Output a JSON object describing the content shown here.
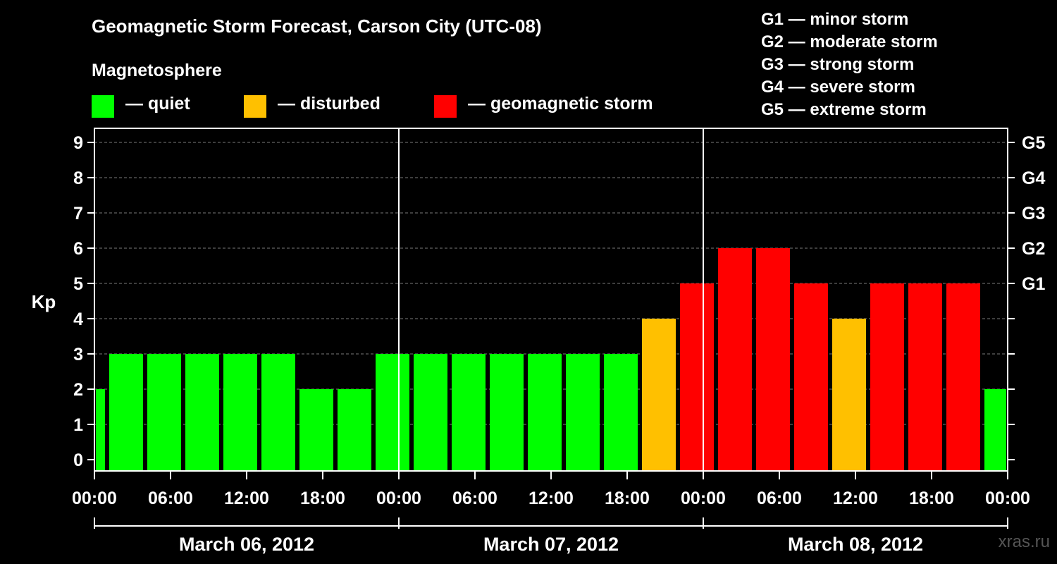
{
  "header": {
    "title": "Geomagnetic Storm Forecast, Carson City (UTC-08)",
    "magnetosphere_label": "Magnetosphere"
  },
  "legend": [
    {
      "label": "— quiet",
      "color": "#00ff00"
    },
    {
      "label": "— disturbed",
      "color": "#ffc000"
    },
    {
      "label": "— geomagnetic storm",
      "color": "#ff0000"
    }
  ],
  "storm_levels": [
    "G1 — minor storm",
    "G2 — moderate storm",
    "G3 — strong storm",
    "G4 — severe storm",
    "G5 — extreme storm"
  ],
  "watermark": "xras.ru",
  "chart_data": {
    "type": "bar",
    "title": "Geomagnetic Storm Forecast, Carson City (UTC-08)",
    "ylabel": "Kp",
    "ylim": [
      0,
      9
    ],
    "yticks": [
      "0",
      "1",
      "2",
      "3",
      "4",
      "5",
      "6",
      "7",
      "8",
      "9"
    ],
    "right_ticks": [
      {
        "kp": 5,
        "label": "G1"
      },
      {
        "kp": 6,
        "label": "G2"
      },
      {
        "kp": 7,
        "label": "G3"
      },
      {
        "kp": 8,
        "label": "G4"
      },
      {
        "kp": 9,
        "label": "G5"
      }
    ],
    "x_range_hours": [
      0,
      72
    ],
    "xticks": [
      "00:00",
      "06:00",
      "12:00",
      "18:00",
      "00:00",
      "06:00",
      "12:00",
      "18:00",
      "00:00",
      "06:00",
      "12:00",
      "18:00",
      "00:00"
    ],
    "days": [
      "March 06, 2012",
      "March 07, 2012",
      "March 08, 2012"
    ],
    "color_thresholds": {
      "quiet_max": 3,
      "disturbed": 4,
      "storm_min": 5
    },
    "bars": [
      {
        "start_hour": 0,
        "end_hour": 1,
        "kp": 2
      },
      {
        "start_hour": 1,
        "end_hour": 4,
        "kp": 3
      },
      {
        "start_hour": 4,
        "end_hour": 7,
        "kp": 3
      },
      {
        "start_hour": 7,
        "end_hour": 10,
        "kp": 3
      },
      {
        "start_hour": 10,
        "end_hour": 13,
        "kp": 3
      },
      {
        "start_hour": 13,
        "end_hour": 16,
        "kp": 3
      },
      {
        "start_hour": 16,
        "end_hour": 19,
        "kp": 2
      },
      {
        "start_hour": 19,
        "end_hour": 22,
        "kp": 2
      },
      {
        "start_hour": 22,
        "end_hour": 25,
        "kp": 3
      },
      {
        "start_hour": 25,
        "end_hour": 28,
        "kp": 3
      },
      {
        "start_hour": 28,
        "end_hour": 31,
        "kp": 3
      },
      {
        "start_hour": 31,
        "end_hour": 34,
        "kp": 3
      },
      {
        "start_hour": 34,
        "end_hour": 37,
        "kp": 3
      },
      {
        "start_hour": 37,
        "end_hour": 40,
        "kp": 3
      },
      {
        "start_hour": 40,
        "end_hour": 43,
        "kp": 3
      },
      {
        "start_hour": 43,
        "end_hour": 46,
        "kp": 4
      },
      {
        "start_hour": 46,
        "end_hour": 49,
        "kp": 5
      },
      {
        "start_hour": 49,
        "end_hour": 52,
        "kp": 6
      },
      {
        "start_hour": 52,
        "end_hour": 55,
        "kp": 6
      },
      {
        "start_hour": 55,
        "end_hour": 58,
        "kp": 5
      },
      {
        "start_hour": 58,
        "end_hour": 61,
        "kp": 4
      },
      {
        "start_hour": 61,
        "end_hour": 64,
        "kp": 5
      },
      {
        "start_hour": 64,
        "end_hour": 67,
        "kp": 5
      },
      {
        "start_hour": 67,
        "end_hour": 70,
        "kp": 5
      },
      {
        "start_hour": 70,
        "end_hour": 72,
        "kp": 2
      }
    ]
  }
}
